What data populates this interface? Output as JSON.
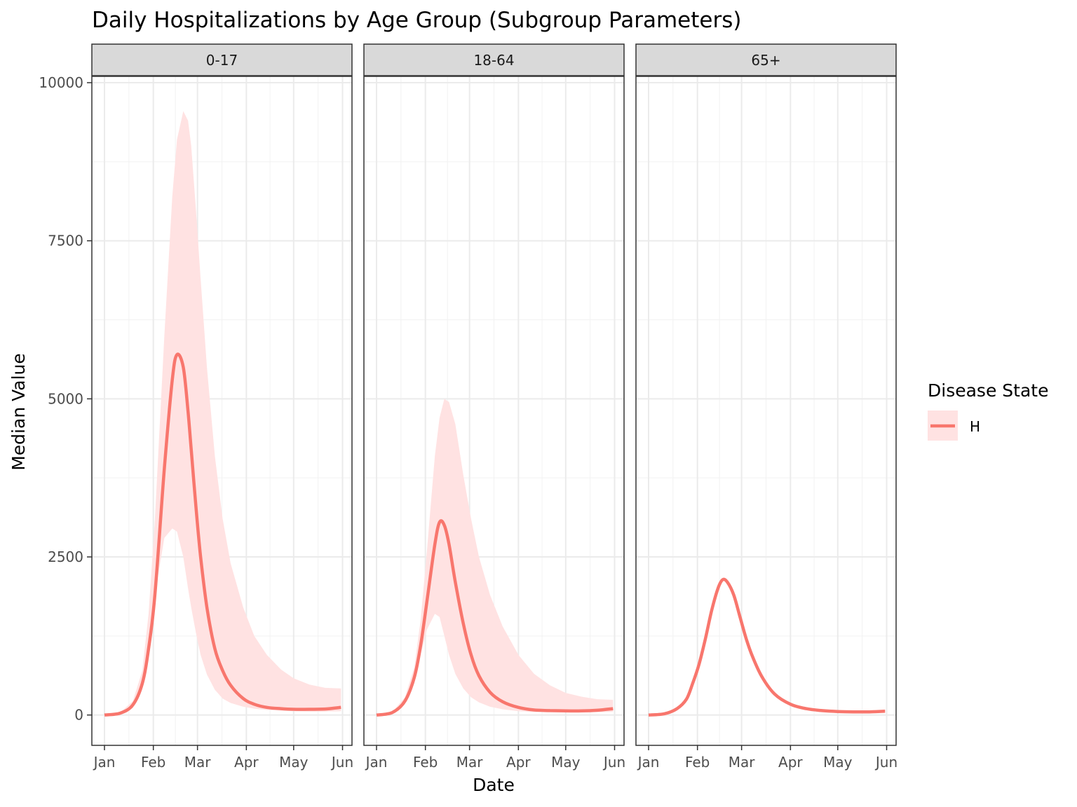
{
  "chart_data": {
    "type": "line",
    "title": "Daily Hospitalizations by Age Group (Subgroup Parameters)",
    "xlabel": "Date",
    "ylabel": "Median Value",
    "x_ticks": [
      "Jan",
      "Feb",
      "Mar",
      "Apr",
      "May",
      "Jun"
    ],
    "x_tick_days": [
      0,
      31,
      59,
      90,
      120,
      151
    ],
    "xlim_days": [
      -8,
      157
    ],
    "y_ticks": [
      0,
      2500,
      5000,
      7500,
      10000
    ],
    "ylim": [
      -480,
      10100
    ],
    "grid": true,
    "legend": {
      "title": "Disease State",
      "placement": "right",
      "entries": [
        {
          "label": "H",
          "color": "#F8766D",
          "ribbon_color": "#FFE2E2"
        }
      ]
    },
    "x_unit_note": "x values are day offsets from Jan 1 (Jan=0, Feb=31, Mar=59, Apr=90, May=120, Jun=151)",
    "panels": [
      {
        "label": "0-17",
        "series": [
          {
            "name": "H",
            "x": [
              0,
              10,
              18,
              24,
              28,
              32,
              38,
              43,
              46,
              50,
              53,
              55,
              58,
              61,
              65,
              70,
              75,
              80,
              88,
              95,
              103,
              112,
              120,
              130,
              140,
              150
            ],
            "y": [
              0,
              30,
              160,
              500,
              1050,
              1900,
              3900,
              5300,
              5700,
              5500,
              4800,
              4200,
              3300,
              2500,
              1700,
              1050,
              700,
              470,
              260,
              170,
              120,
              100,
              90,
              90,
              95,
              120
            ],
            "lower": [
              0,
              15,
              110,
              450,
              1000,
              1900,
              2800,
              2950,
              2900,
              2500,
              2000,
              1700,
              1300,
              950,
              640,
              400,
              260,
              190,
              130,
              100,
              80,
              70,
              60,
              55,
              55,
              60
            ],
            "upper": [
              0,
              40,
              220,
              700,
              1600,
              3100,
              6000,
              8200,
              9100,
              9550,
              9400,
              9000,
              8000,
              6900,
              5500,
              4100,
              3100,
              2400,
              1700,
              1250,
              950,
              720,
              580,
              480,
              430,
              420
            ]
          }
        ]
      },
      {
        "label": "18-64",
        "series": [
          {
            "name": "H",
            "x": [
              0,
              10,
              18,
              24,
              28,
              32,
              37,
              40,
              43,
              46,
              50,
              55,
              60,
              65,
              72,
              80,
              90,
              100,
              110,
              120,
              130,
              140,
              150
            ],
            "y": [
              0,
              40,
              220,
              600,
              1100,
              1800,
              2700,
              3050,
              3000,
              2700,
              2100,
              1450,
              950,
              620,
              360,
              210,
              120,
              80,
              70,
              65,
              65,
              75,
              100
            ],
            "lower": [
              0,
              30,
              170,
              500,
              950,
              1350,
              1600,
              1550,
              1250,
              950,
              650,
              420,
              280,
              200,
              130,
              90,
              60,
              50,
              45,
              40,
              40,
              45,
              50
            ],
            "upper": [
              0,
              50,
              280,
              760,
              1500,
              2600,
              4100,
              4700,
              5000,
              4950,
              4600,
              3800,
              3100,
              2500,
              1900,
              1400,
              950,
              650,
              470,
              350,
              290,
              250,
              240
            ]
          }
        ]
      },
      {
        "label": "65+",
        "series": [
          {
            "name": "H",
            "x": [
              0,
              10,
              18,
              24,
              28,
              32,
              36,
              40,
              44,
              47,
              50,
              54,
              58,
              62,
              66,
              72,
              80,
              90,
              100,
              110,
              120,
              130,
              140,
              150
            ],
            "y": [
              0,
              20,
              100,
              250,
              500,
              800,
              1200,
              1650,
              2000,
              2140,
              2100,
              1900,
              1550,
              1200,
              920,
              600,
              330,
              170,
              100,
              70,
              55,
              50,
              50,
              60
            ]
          }
        ]
      }
    ]
  }
}
